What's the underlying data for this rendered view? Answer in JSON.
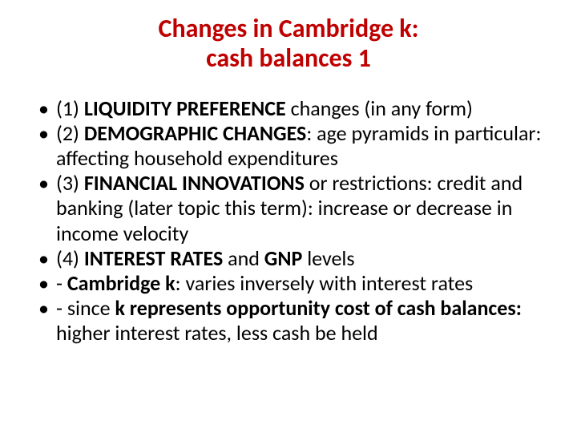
{
  "title": {
    "line1": "Changes in Cambridge k:",
    "line2": "cash balances 1",
    "color": "#c00000",
    "fontsize": 32
  },
  "bullets": {
    "fontsize": 26,
    "text_color": "#000000",
    "items": [
      {
        "segments": [
          {
            "text": "(1) ",
            "bold": false
          },
          {
            "text": "LIQUIDITY PREFERENCE",
            "bold": true
          },
          {
            "text": " changes (in any form)",
            "bold": false
          }
        ]
      },
      {
        "segments": [
          {
            "text": "(2) ",
            "bold": false
          },
          {
            "text": "DEMOGRAPHIC  CHANGES",
            "bold": true
          },
          {
            "text": ":  age pyramids in particular: affecting household expenditures",
            "bold": false
          }
        ]
      },
      {
        "segments": [
          {
            "text": "(3)  ",
            "bold": false
          },
          {
            "text": "FINANCIAL INNOVATIONS",
            "bold": true
          },
          {
            "text": " or restrictions: credit and banking (later topic this term): increase or decrease in income velocity",
            "bold": false
          }
        ]
      },
      {
        "segments": [
          {
            "text": "(4)  ",
            "bold": false
          },
          {
            "text": "INTEREST RATES",
            "bold": true
          },
          {
            "text": " and ",
            "bold": false
          },
          {
            "text": "GNP",
            "bold": true
          },
          {
            "text": " levels",
            "bold": false
          }
        ]
      },
      {
        "segments": [
          {
            "text": "- ",
            "bold": false
          },
          {
            "text": "Cambridge k",
            "bold": true
          },
          {
            "text": ": varies inversely with interest rates",
            "bold": false
          }
        ]
      },
      {
        "segments": [
          {
            "text": "- since ",
            "bold": false
          },
          {
            "text": "k represents opportunity cost of cash balances: ",
            "bold": true
          },
          {
            "text": "higher interest rates, less cash be held",
            "bold": false
          }
        ]
      }
    ]
  }
}
